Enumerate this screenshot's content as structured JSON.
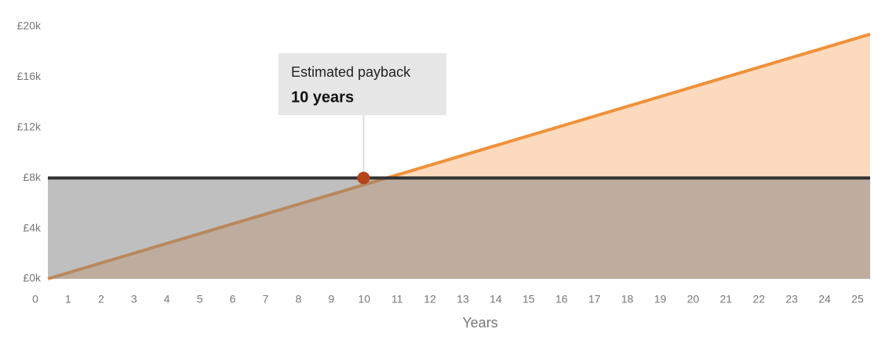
{
  "chart_data": {
    "type": "area",
    "x_label": "Years",
    "xlim": [
      0,
      25
    ],
    "xticks": [
      0,
      1,
      2,
      3,
      4,
      5,
      6,
      7,
      8,
      9,
      10,
      11,
      12,
      13,
      14,
      15,
      16,
      17,
      18,
      19,
      20,
      21,
      22,
      23,
      24,
      25
    ],
    "ylim": [
      0,
      20000
    ],
    "yticks": [
      {
        "value": 0,
        "label": "£0k"
      },
      {
        "value": 4000,
        "label": "£4k"
      },
      {
        "value": 8000,
        "label": "£8k"
      },
      {
        "value": 12000,
        "label": "£12k"
      },
      {
        "value": 16000,
        "label": "£16k"
      },
      {
        "value": 20000,
        "label": "£20k"
      }
    ],
    "series": [
      {
        "color": "#f0913a",
        "fill": "#f7a35c",
        "x": [
          0,
          25
        ],
        "values": [
          0,
          19400
        ]
      },
      {
        "color": "#333333",
        "fill": "#808080",
        "x": [
          0,
          25
        ],
        "values": [
          8000,
          8000
        ]
      }
    ],
    "annotation": {
      "title": "Estimated payback",
      "text": "10 years",
      "x": 9.6,
      "y": 8000,
      "color": "#b5441a"
    }
  }
}
